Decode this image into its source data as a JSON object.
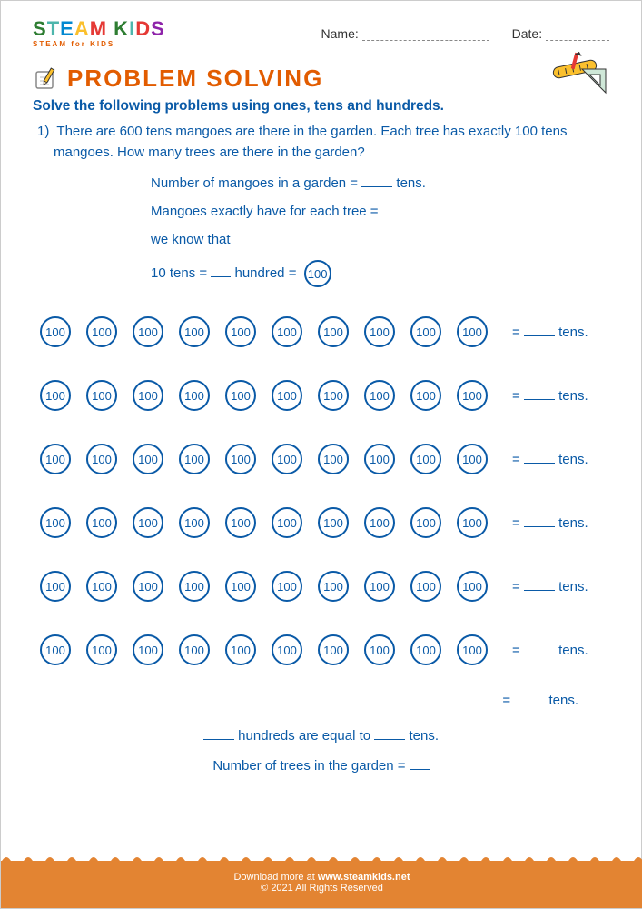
{
  "brand": {
    "name": "STEAM KIDS",
    "tagline": "STEAM for KIDS",
    "colors": [
      "#2e7d32",
      "#4db6ac",
      "#0288d1",
      "#fbc02d",
      "#e53935",
      "#8e24aa"
    ]
  },
  "header": {
    "name_label": "Name:",
    "date_label": "Date:"
  },
  "title": "PROBLEM SOLVING",
  "instruction": "Solve the following problems using ones, tens and hundreds.",
  "question": {
    "number": "1)",
    "text": "There are 600 tens mangoes are there in the garden. Each tree has exactly 100 tens mangoes. How many trees are there in the garden?"
  },
  "lines": {
    "l1_a": "Number of mangoes in a garden  = ",
    "l1_b": "  tens.",
    "l2": "Mangoes exactly have for each tree  = ",
    "l3": "we know that",
    "l4_a": "10 tens = ",
    "l4_b": " hundred =  "
  },
  "circle_value": "100",
  "rows": {
    "count": 6,
    "per_row": 10,
    "eq_prefix": " = ",
    "eq_suffix": " tens."
  },
  "total": {
    "prefix": "= ",
    "suffix": " tens."
  },
  "summary1_a": " hundreds are equal to ",
  "summary1_b": " tens.",
  "summary2_a": "Number of trees in the garden = ",
  "footer": {
    "line1_a": "Download more at ",
    "line1_b": "www.steamkids.net",
    "line2": "©  2021 All Rights Reserved"
  },
  "colors": {
    "accent": "#e25c00",
    "primary": "#0a5aa7",
    "footer_bg": "#e38432"
  }
}
